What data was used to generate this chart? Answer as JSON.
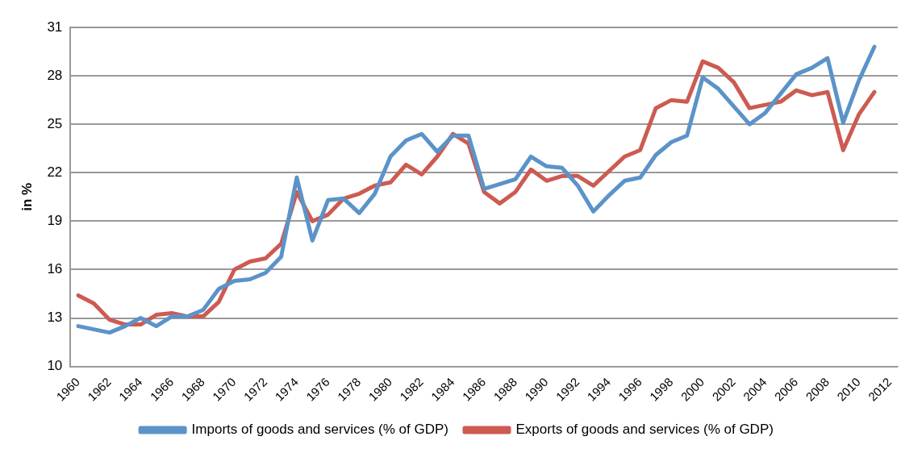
{
  "chart_data": {
    "type": "line",
    "ylabel": "in %",
    "categories": [
      "1960",
      null,
      "1962",
      null,
      "1964",
      null,
      "1966",
      null,
      "1968",
      null,
      "1970",
      null,
      "1972",
      null,
      "1974",
      null,
      "1976",
      null,
      "1978",
      null,
      "1980",
      null,
      "1982",
      null,
      "1984",
      null,
      "1986",
      null,
      "1988",
      null,
      "1990",
      null,
      "1992",
      null,
      "1994",
      null,
      "1996",
      null,
      "1998",
      null,
      "2000",
      null,
      "2002",
      null,
      "2004",
      null,
      "2006",
      null,
      "2008",
      null,
      "2010",
      null,
      "2012"
    ],
    "series": [
      {
        "name": "Imports of goods and services (% of GDP)",
        "color": "#5b93c9",
        "values": [
          12.5,
          12.3,
          12.1,
          12.5,
          13.0,
          12.5,
          13.1,
          13.1,
          13.5,
          14.8,
          15.3,
          15.4,
          15.8,
          16.8,
          21.7,
          17.8,
          20.3,
          20.4,
          19.5,
          20.7,
          23.0,
          24.0,
          24.4,
          23.3,
          24.3,
          24.3,
          21.0,
          21.3,
          21.6,
          23.0,
          22.4,
          22.3,
          21.2,
          19.6,
          20.6,
          21.5,
          21.7,
          23.1,
          23.9,
          24.3,
          27.9,
          27.2,
          26.1,
          25.0,
          25.7,
          26.9,
          28.1,
          28.5,
          29.1,
          25.1,
          27.7,
          29.8,
          null
        ]
      },
      {
        "name": "Exports of goods and services (% of GDP)",
        "color": "#cc5b52",
        "values": [
          14.4,
          13.9,
          12.9,
          12.6,
          12.6,
          13.2,
          13.3,
          13.1,
          13.1,
          14.0,
          16.0,
          16.5,
          16.7,
          17.6,
          20.8,
          19.0,
          19.4,
          20.4,
          20.7,
          21.2,
          21.4,
          22.5,
          21.9,
          23.0,
          24.4,
          23.8,
          20.8,
          20.1,
          20.8,
          22.2,
          21.5,
          21.8,
          21.8,
          21.2,
          22.1,
          23.0,
          23.4,
          26.0,
          26.5,
          26.4,
          28.9,
          28.5,
          27.6,
          26.0,
          26.2,
          26.4,
          27.1,
          26.8,
          27.0,
          23.4,
          25.6,
          27.0,
          null
        ]
      }
    ],
    "ylim": [
      10,
      31
    ],
    "yticks": [
      10,
      13,
      16,
      19,
      22,
      25,
      28,
      31
    ],
    "grid": "y",
    "legend": "bottom",
    "marker": "none",
    "line_style": "solid"
  }
}
